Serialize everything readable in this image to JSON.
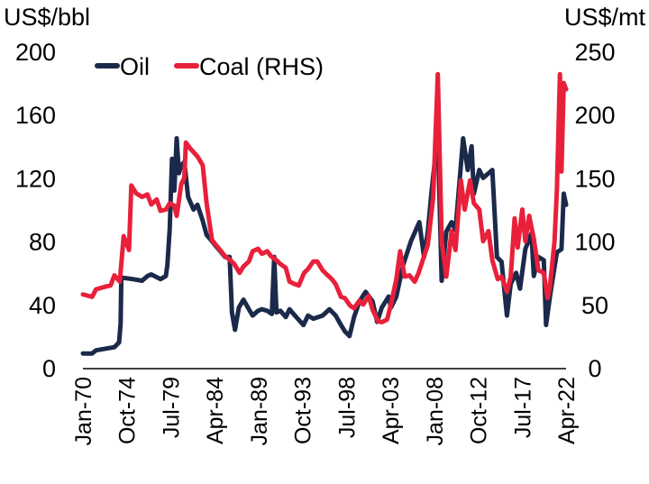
{
  "chart_data": {
    "type": "line",
    "left_unit": "US$/bbl",
    "right_unit": "US$/mt",
    "y_left": {
      "min": 0,
      "max": 200,
      "ticks": [
        0,
        40,
        80,
        120,
        160,
        200
      ]
    },
    "y_right": {
      "min": 0,
      "max": 250,
      "ticks": [
        0,
        50,
        100,
        150,
        200,
        250
      ]
    },
    "x_ticks": [
      "Jan-70",
      "Oct-74",
      "Jul-79",
      "Apr-84",
      "Jan-89",
      "Oct-93",
      "Jul-98",
      "Apr-03",
      "Jan-08",
      "Oct-12",
      "Jul-17",
      "Apr-22"
    ],
    "x_range": [
      "1970-01",
      "2022-06"
    ],
    "legend_position": "top-left",
    "colors": {
      "oil": "#1b2a4a",
      "coal": "#e8203a"
    },
    "series": [
      {
        "name": "Oil",
        "axis": "left",
        "points": [
          [
            "1970-01",
            9
          ],
          [
            "1971-01",
            9
          ],
          [
            "1971-06",
            11
          ],
          [
            "1972-06",
            12
          ],
          [
            "1973-06",
            13
          ],
          [
            "1973-12",
            16
          ],
          [
            "1974-02",
            28
          ],
          [
            "1974-03",
            57
          ],
          [
            "1975-06",
            56
          ],
          [
            "1976-06",
            55
          ],
          [
            "1977-01",
            58
          ],
          [
            "1977-06",
            59
          ],
          [
            "1978-06",
            56
          ],
          [
            "1979-01",
            58
          ],
          [
            "1979-03",
            65
          ],
          [
            "1979-06",
            88
          ],
          [
            "1979-09",
            132
          ],
          [
            "1979-12",
            112
          ],
          [
            "1980-03",
            145
          ],
          [
            "1980-06",
            123
          ],
          [
            "1980-09",
            128
          ],
          [
            "1981-01",
            130
          ],
          [
            "1981-06",
            108
          ],
          [
            "1982-01",
            100
          ],
          [
            "1982-06",
            103
          ],
          [
            "1983-01",
            93
          ],
          [
            "1983-06",
            84
          ],
          [
            "1984-01",
            80
          ],
          [
            "1984-06",
            77
          ],
          [
            "1985-01",
            73
          ],
          [
            "1985-06",
            70
          ],
          [
            "1985-12",
            70
          ],
          [
            "1986-03",
            35
          ],
          [
            "1986-07",
            24
          ],
          [
            "1986-12",
            38
          ],
          [
            "1987-06",
            43
          ],
          [
            "1988-01",
            37
          ],
          [
            "1988-06",
            33
          ],
          [
            "1989-01",
            36
          ],
          [
            "1989-06",
            37
          ],
          [
            "1990-01",
            36
          ],
          [
            "1990-07",
            34
          ],
          [
            "1990-10",
            70
          ],
          [
            "1991-01",
            35
          ],
          [
            "1991-06",
            36
          ],
          [
            "1992-01",
            32
          ],
          [
            "1992-06",
            37
          ],
          [
            "1993-01",
            33
          ],
          [
            "1993-12",
            27
          ],
          [
            "1994-06",
            33
          ],
          [
            "1995-01",
            31
          ],
          [
            "1996-01",
            33
          ],
          [
            "1996-10",
            37
          ],
          [
            "1997-06",
            33
          ],
          [
            "1998-01",
            27
          ],
          [
            "1998-06",
            23
          ],
          [
            "1998-12",
            20
          ],
          [
            "1999-06",
            32
          ],
          [
            "2000-01",
            42
          ],
          [
            "2000-09",
            48
          ],
          [
            "2001-06",
            42
          ],
          [
            "2001-12",
            29
          ],
          [
            "2002-06",
            38
          ],
          [
            "2003-03",
            45
          ],
          [
            "2003-06",
            38
          ],
          [
            "2004-01",
            45
          ],
          [
            "2004-10",
            65
          ],
          [
            "2005-08",
            80
          ],
          [
            "2006-07",
            92
          ],
          [
            "2007-01",
            70
          ],
          [
            "2007-06",
            86
          ],
          [
            "2007-11",
            112
          ],
          [
            "2008-07",
            148
          ],
          [
            "2008-12",
            55
          ],
          [
            "2009-06",
            86
          ],
          [
            "2010-01",
            92
          ],
          [
            "2010-06",
            87
          ],
          [
            "2011-04",
            145
          ],
          [
            "2011-10",
            125
          ],
          [
            "2012-03",
            140
          ],
          [
            "2012-06",
            110
          ],
          [
            "2013-01",
            125
          ],
          [
            "2013-06",
            120
          ],
          [
            "2014-06",
            125
          ],
          [
            "2014-12",
            70
          ],
          [
            "2015-06",
            67
          ],
          [
            "2016-01",
            33
          ],
          [
            "2016-06",
            53
          ],
          [
            "2017-01",
            60
          ],
          [
            "2017-06",
            50
          ],
          [
            "2018-01",
            75
          ],
          [
            "2018-09",
            85
          ],
          [
            "2018-12",
            58
          ],
          [
            "2019-06",
            70
          ],
          [
            "2020-01",
            68
          ],
          [
            "2020-04",
            27
          ],
          [
            "2020-09",
            45
          ],
          [
            "2021-06",
            73
          ],
          [
            "2021-12",
            75
          ],
          [
            "2022-03",
            110
          ],
          [
            "2022-06",
            103
          ]
        ]
      },
      {
        "name": "Coal (RHS)",
        "axis": "right",
        "points": [
          [
            "1970-01",
            58
          ],
          [
            "1971-01",
            56
          ],
          [
            "1971-06",
            62
          ],
          [
            "1972-06",
            64
          ],
          [
            "1973-01",
            65
          ],
          [
            "1973-06",
            73
          ],
          [
            "1974-01",
            68
          ],
          [
            "1974-06",
            104
          ],
          [
            "1975-01",
            93
          ],
          [
            "1975-04",
            144
          ],
          [
            "1975-10",
            138
          ],
          [
            "1976-06",
            135
          ],
          [
            "1977-01",
            137
          ],
          [
            "1977-06",
            129
          ],
          [
            "1978-01",
            133
          ],
          [
            "1978-06",
            124
          ],
          [
            "1979-01",
            125
          ],
          [
            "1979-06",
            130
          ],
          [
            "1979-12",
            128
          ],
          [
            "1980-03",
            120
          ],
          [
            "1980-09",
            145
          ],
          [
            "1981-01",
            150
          ],
          [
            "1981-03",
            178
          ],
          [
            "1981-09",
            173
          ],
          [
            "1982-06",
            167
          ],
          [
            "1983-01",
            160
          ],
          [
            "1983-06",
            130
          ],
          [
            "1984-01",
            101
          ],
          [
            "1984-06",
            97
          ],
          [
            "1985-01",
            92
          ],
          [
            "1985-06",
            88
          ],
          [
            "1986-01",
            85
          ],
          [
            "1986-06",
            82
          ],
          [
            "1987-01",
            75
          ],
          [
            "1987-06",
            80
          ],
          [
            "1988-01",
            84
          ],
          [
            "1988-06",
            92
          ],
          [
            "1989-01",
            94
          ],
          [
            "1989-06",
            90
          ],
          [
            "1990-01",
            92
          ],
          [
            "1990-06",
            88
          ],
          [
            "1991-01",
            85
          ],
          [
            "1991-06",
            82
          ],
          [
            "1992-01",
            79
          ],
          [
            "1992-06",
            68
          ],
          [
            "1993-01",
            66
          ],
          [
            "1993-06",
            65
          ],
          [
            "1994-01",
            75
          ],
          [
            "1994-06",
            78
          ],
          [
            "1995-01",
            84
          ],
          [
            "1995-06",
            84
          ],
          [
            "1996-01",
            77
          ],
          [
            "1996-06",
            74
          ],
          [
            "1997-01",
            70
          ],
          [
            "1997-06",
            66
          ],
          [
            "1998-01",
            56
          ],
          [
            "1998-06",
            55
          ],
          [
            "1999-01",
            49
          ],
          [
            "1999-06",
            47
          ],
          [
            "2000-01",
            53
          ],
          [
            "2000-06",
            50
          ],
          [
            "2001-01",
            57
          ],
          [
            "2001-06",
            46
          ],
          [
            "2002-01",
            37
          ],
          [
            "2002-06",
            36
          ],
          [
            "2003-01",
            38
          ],
          [
            "2003-06",
            50
          ],
          [
            "2004-01",
            70
          ],
          [
            "2004-06",
            92
          ],
          [
            "2004-12",
            72
          ],
          [
            "2005-06",
            73
          ],
          [
            "2006-01",
            68
          ],
          [
            "2006-06",
            75
          ],
          [
            "2007-01",
            88
          ],
          [
            "2007-06",
            97
          ],
          [
            "2008-01",
            135
          ],
          [
            "2008-07",
            232
          ],
          [
            "2008-12",
            100
          ],
          [
            "2009-06",
            72
          ],
          [
            "2010-01",
            108
          ],
          [
            "2010-06",
            93
          ],
          [
            "2011-01",
            148
          ],
          [
            "2011-06",
            125
          ],
          [
            "2012-01",
            148
          ],
          [
            "2012-06",
            130
          ],
          [
            "2013-01",
            125
          ],
          [
            "2013-06",
            100
          ],
          [
            "2014-01",
            108
          ],
          [
            "2014-06",
            85
          ],
          [
            "2015-01",
            70
          ],
          [
            "2015-06",
            72
          ],
          [
            "2016-01",
            60
          ],
          [
            "2016-06",
            72
          ],
          [
            "2016-11",
            118
          ],
          [
            "2017-03",
            95
          ],
          [
            "2017-09",
            125
          ],
          [
            "2018-01",
            100
          ],
          [
            "2018-06",
            120
          ],
          [
            "2018-12",
            102
          ],
          [
            "2019-06",
            77
          ],
          [
            "2020-01",
            75
          ],
          [
            "2020-06",
            55
          ],
          [
            "2020-09",
            64
          ],
          [
            "2021-03",
            100
          ],
          [
            "2021-06",
            140
          ],
          [
            "2021-10",
            232
          ],
          [
            "2021-12",
            155
          ],
          [
            "2022-03",
            225
          ],
          [
            "2022-06",
            220
          ]
        ]
      }
    ]
  }
}
